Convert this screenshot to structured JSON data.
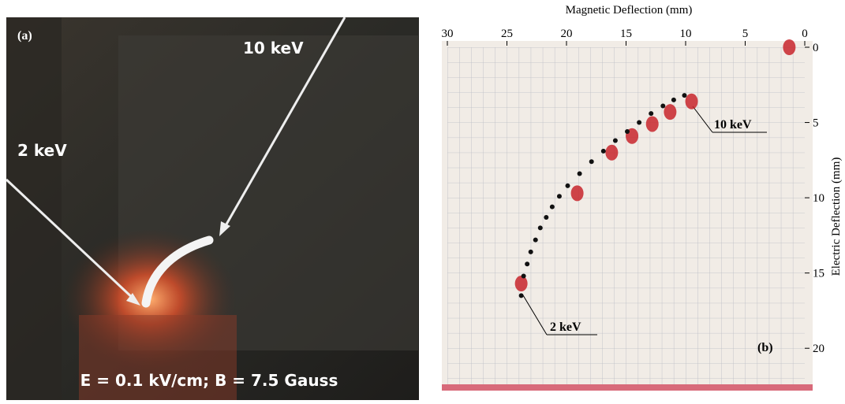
{
  "panel_a": {
    "label": "(a)",
    "arrow_high": "10 keV",
    "arrow_low": "2 keV",
    "caption": "E = 0.1 kV/cm; B = 7.5 Gauss"
  },
  "chart_data": {
    "type": "scatter",
    "panel_label": "(b)",
    "x_label": "Magnetic Deflection (mm)",
    "y_label": "Electric Deflection (mm)",
    "xlim": [
      30,
      0
    ],
    "ylim": [
      0,
      22.5
    ],
    "xticks": [
      30,
      25,
      20,
      15,
      10,
      5,
      0
    ],
    "yticks": [
      0,
      5,
      10,
      15,
      20
    ],
    "annotations": [
      "10 keV",
      "2 keV"
    ],
    "series": [
      {
        "color": "#c8262c",
        "x": [
          9.5,
          11.3,
          12.8,
          14.5,
          16.2,
          19.1,
          23.8,
          1.3
        ],
        "y": [
          3.6,
          4.3,
          5.1,
          5.9,
          7.0,
          9.7,
          15.7,
          0
        ]
      },
      {
        "color": "#111111",
        "x": [
          10.1,
          11.0,
          11.9,
          12.9,
          13.9,
          14.9,
          15.9,
          16.9,
          17.9,
          18.9,
          19.9,
          20.6,
          21.2,
          21.7,
          22.2,
          22.6,
          23.0,
          23.3,
          23.6,
          23.8
        ],
        "y": [
          3.2,
          3.5,
          3.9,
          4.4,
          5.0,
          5.6,
          6.2,
          6.9,
          7.6,
          8.4,
          9.2,
          9.9,
          10.6,
          11.3,
          12.0,
          12.8,
          13.6,
          14.4,
          15.2,
          16.5
        ]
      }
    ]
  }
}
